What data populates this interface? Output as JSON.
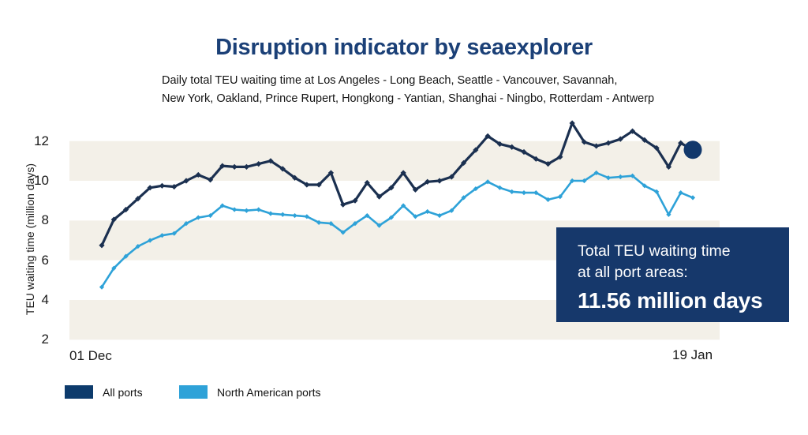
{
  "theme": {
    "title_color": "#1B4077",
    "text_color": "#1A1A1A",
    "band_color": "#F3F0E8",
    "callout_bg": "#16386B",
    "legend_navy": "#0D3B6C",
    "legend_blue": "#2EA2D8"
  },
  "callout": {
    "line1": "Total TEU waiting time",
    "line2": "at all port areas:",
    "value_text": "11.56 million days"
  },
  "chart_data": {
    "type": "line",
    "title": "Disruption indicator by seaexplorer",
    "subtitle_lines": [
      "Daily total TEU waiting time at Los Angeles - Long Beach, Seattle - Vancouver, Savannah,",
      "New York, Oakland, Prince Rupert, Hongkong - Yantian, Shanghai - Ningbo, Rotterdam - Antwerp"
    ],
    "ylabel": "TEU waiting time (million days)",
    "y_axis": {
      "ticks": [
        12,
        10,
        8,
        6,
        4,
        2
      ],
      "ylim": [
        2,
        13.5
      ]
    },
    "x_axis": {
      "start_label": "01 Dec",
      "end_label": "19 Jan",
      "points": 50
    },
    "grid": "alternating horizontal bands on 2-unit intervals: 10-12, 6-8, 2-4",
    "legend_position": "bottom-left",
    "bands": [
      [
        10,
        12
      ],
      [
        6,
        8
      ],
      [
        2,
        4
      ]
    ],
    "series": [
      {
        "name": "All ports",
        "color": "#1B3050",
        "marker": "diamond",
        "values": [
          6.75,
          8.05,
          8.55,
          9.1,
          9.65,
          9.75,
          9.7,
          10.0,
          10.3,
          10.05,
          10.75,
          10.7,
          10.7,
          10.85,
          11.0,
          10.6,
          10.15,
          9.8,
          9.8,
          10.4,
          8.8,
          9.0,
          9.9,
          9.2,
          9.65,
          10.4,
          9.55,
          9.95,
          10.0,
          10.2,
          10.9,
          11.55,
          12.25,
          11.85,
          11.7,
          11.45,
          11.1,
          10.85,
          11.2,
          12.9,
          11.95,
          11.75,
          11.9,
          12.1,
          12.5,
          12.05,
          11.65,
          10.7,
          11.9,
          11.56
        ]
      },
      {
        "name": "North American ports",
        "color": "#2EA2D8",
        "marker": "diamond",
        "values": [
          4.65,
          5.6,
          6.2,
          6.7,
          7.0,
          7.25,
          7.35,
          7.85,
          8.15,
          8.25,
          8.75,
          8.55,
          8.5,
          8.55,
          8.35,
          8.3,
          8.25,
          8.2,
          7.9,
          7.85,
          7.4,
          7.85,
          8.25,
          7.75,
          8.15,
          8.75,
          8.2,
          8.45,
          8.25,
          8.5,
          9.15,
          9.6,
          9.95,
          9.65,
          9.45,
          9.4,
          9.4,
          9.05,
          9.2,
          10.0,
          10.0,
          10.4,
          10.15,
          10.2,
          10.25,
          9.75,
          9.45,
          8.3,
          9.4,
          9.15
        ]
      }
    ],
    "end_dot": {
      "series": "All ports",
      "value": 11.56,
      "color": "#12386B"
    }
  }
}
